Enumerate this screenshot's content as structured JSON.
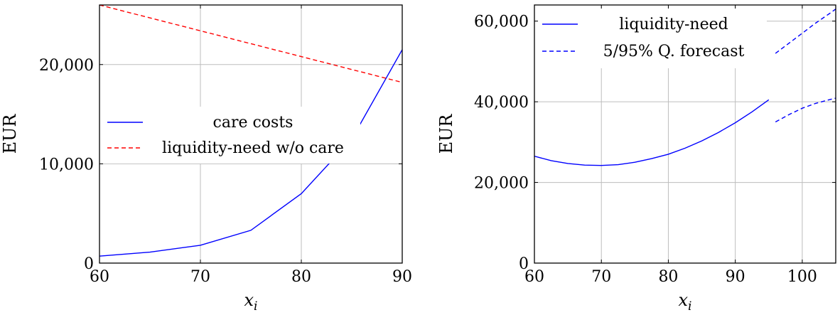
{
  "chart_data": [
    {
      "type": "line",
      "xlabel": "x_i",
      "ylabel": "EUR",
      "xlim": [
        60,
        90
      ],
      "ylim": [
        0,
        26000
      ],
      "xticks": [
        60,
        70,
        80,
        90
      ],
      "yticks": [
        0,
        10000,
        20000
      ],
      "xtick_labels": [
        "60",
        "70",
        "80",
        "90"
      ],
      "ytick_labels": [
        "0",
        "10,000",
        "20,000"
      ],
      "grid": true,
      "legend_position": "middle-left",
      "series": [
        {
          "name": "care costs",
          "color": "#0000ff",
          "style": "solid",
          "x": [
            60,
            65,
            70,
            75,
            80,
            85,
            90
          ],
          "y": [
            700,
            1100,
            1800,
            3300,
            7000,
            12500,
            21500
          ]
        },
        {
          "name": "liquidity-need w/o care",
          "color": "#ff0000",
          "style": "dashed",
          "x": [
            60,
            90
          ],
          "y": [
            26000,
            18200
          ]
        }
      ]
    },
    {
      "type": "line",
      "xlabel": "x_i",
      "ylabel": "EUR",
      "xlim": [
        60,
        105
      ],
      "ylim": [
        0,
        64000
      ],
      "xticks": [
        60,
        70,
        80,
        90,
        100
      ],
      "yticks": [
        0,
        20000,
        40000,
        60000
      ],
      "xtick_labels": [
        "60",
        "70",
        "80",
        "90",
        "100"
      ],
      "ytick_labels": [
        "0",
        "20,000",
        "40,000",
        "60,000"
      ],
      "grid": true,
      "legend_position": "top-left",
      "series": [
        {
          "name": "liquidity-need",
          "color": "#0000ff",
          "style": "solid",
          "x": [
            60,
            62.5,
            65,
            67.5,
            70,
            72.5,
            75,
            77.5,
            80,
            82.5,
            85,
            87.5,
            90,
            92.5,
            95
          ],
          "y": [
            26500,
            25400,
            24700,
            24300,
            24200,
            24400,
            25000,
            25900,
            27000,
            28500,
            30300,
            32400,
            34800,
            37500,
            40500
          ]
        },
        {
          "name": "5/95% Q. forecast",
          "color": "#0000ff",
          "style": "dashed",
          "x": [
            96,
            98,
            100,
            102,
            104,
            105
          ],
          "y": [
            52000,
            54500,
            57000,
            59500,
            61800,
            63000
          ]
        },
        {
          "name": "",
          "color": "#0000ff",
          "style": "dashed",
          "x": [
            96,
            98,
            100,
            102,
            104,
            105
          ],
          "y": [
            35000,
            36800,
            38400,
            39600,
            40500,
            40900
          ]
        }
      ]
    }
  ]
}
